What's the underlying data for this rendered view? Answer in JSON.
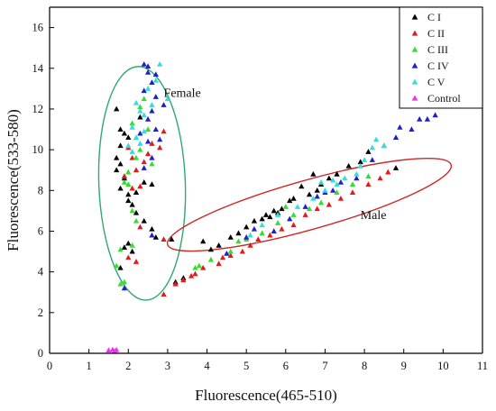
{
  "chart_data": {
    "type": "scatter",
    "xlabel": "Fluorescence(465-510)",
    "ylabel": "Fluorescence(533-580)",
    "xlim": [
      0,
      11
    ],
    "ylim": [
      0,
      17
    ],
    "xticks": [
      0,
      1,
      2,
      3,
      4,
      5,
      6,
      7,
      8,
      9,
      10,
      11
    ],
    "yticks": [
      0,
      2,
      4,
      6,
      8,
      10,
      12,
      14,
      16
    ],
    "grid": false,
    "legend_position": "top-right",
    "marker": "triangle",
    "series": [
      {
        "name": "C I",
        "color": "#000000",
        "points": [
          [
            1.7,
            12.0
          ],
          [
            1.8,
            11.0
          ],
          [
            1.9,
            10.8
          ],
          [
            1.8,
            10.2
          ],
          [
            1.7,
            9.6
          ],
          [
            1.8,
            9.3
          ],
          [
            1.7,
            9.0
          ],
          [
            1.9,
            8.6
          ],
          [
            1.8,
            8.1
          ],
          [
            2.0,
            7.8
          ],
          [
            2.0,
            7.5
          ],
          [
            2.1,
            7.3
          ],
          [
            2.2,
            6.9
          ],
          [
            2.4,
            6.5
          ],
          [
            2.6,
            6.1
          ],
          [
            2.7,
            5.7
          ],
          [
            2.0,
            5.4
          ],
          [
            1.9,
            5.2
          ],
          [
            2.1,
            5.0
          ],
          [
            2.4,
            8.4
          ],
          [
            2.6,
            8.3
          ],
          [
            2.2,
            7.9
          ],
          [
            2.0,
            10.6
          ],
          [
            2.3,
            11.6
          ],
          [
            3.1,
            5.6
          ],
          [
            1.8,
            4.2
          ],
          [
            3.9,
            5.5
          ],
          [
            4.1,
            5.1
          ],
          [
            4.3,
            5.3
          ],
          [
            4.6,
            5.7
          ],
          [
            4.8,
            5.9
          ],
          [
            5.0,
            6.2
          ],
          [
            5.2,
            6.5
          ],
          [
            5.4,
            6.6
          ],
          [
            5.5,
            6.8
          ],
          [
            5.7,
            7.0
          ],
          [
            5.8,
            6.9
          ],
          [
            5.9,
            7.1
          ],
          [
            6.1,
            7.5
          ],
          [
            6.2,
            7.6
          ],
          [
            6.4,
            8.2
          ],
          [
            6.6,
            7.8
          ],
          [
            6.8,
            8.0
          ],
          [
            6.9,
            8.3
          ],
          [
            7.1,
            8.6
          ],
          [
            7.3,
            8.8
          ],
          [
            7.6,
            9.2
          ],
          [
            7.9,
            9.4
          ],
          [
            8.1,
            9.9
          ],
          [
            8.8,
            9.1
          ],
          [
            3.4,
            3.7
          ],
          [
            3.2,
            3.5
          ],
          [
            6.7,
            8.8
          ],
          [
            5.6,
            6.7
          ]
        ]
      },
      {
        "name": "C II",
        "color": "#e41a1c",
        "points": [
          [
            2.9,
            5.6
          ],
          [
            2.9,
            2.9
          ],
          [
            3.2,
            3.4
          ],
          [
            3.4,
            3.6
          ],
          [
            3.7,
            3.9
          ],
          [
            3.9,
            4.2
          ],
          [
            4.3,
            4.4
          ],
          [
            4.6,
            4.8
          ],
          [
            4.9,
            5.0
          ],
          [
            5.1,
            5.3
          ],
          [
            5.3,
            5.6
          ],
          [
            5.6,
            5.8
          ],
          [
            5.9,
            6.1
          ],
          [
            6.2,
            6.3
          ],
          [
            6.5,
            6.8
          ],
          [
            6.8,
            7.1
          ],
          [
            7.1,
            7.3
          ],
          [
            7.4,
            7.6
          ],
          [
            7.7,
            7.9
          ],
          [
            8.1,
            8.3
          ],
          [
            8.4,
            8.6
          ],
          [
            8.6,
            8.9
          ],
          [
            2.2,
            4.5
          ],
          [
            2.0,
            4.7
          ],
          [
            2.3,
            6.2
          ],
          [
            2.1,
            8.1
          ],
          [
            2.3,
            8.2
          ],
          [
            1.9,
            8.7
          ],
          [
            2.4,
            9.4
          ],
          [
            2.5,
            9.8
          ],
          [
            2.6,
            10.3
          ],
          [
            2.8,
            10.1
          ],
          [
            2.9,
            10.9
          ],
          [
            2.2,
            9.0
          ],
          [
            2.1,
            9.6
          ],
          [
            2.0,
            10.1
          ],
          [
            3.6,
            3.8
          ],
          [
            4.4,
            4.7
          ]
        ]
      },
      {
        "name": "C III",
        "color": "#33dd33",
        "points": [
          [
            1.8,
            3.4
          ],
          [
            1.9,
            3.5
          ],
          [
            1.7,
            4.3
          ],
          [
            1.8,
            5.1
          ],
          [
            2.1,
            5.3
          ],
          [
            2.2,
            6.5
          ],
          [
            2.1,
            7.0
          ],
          [
            2.0,
            8.3
          ],
          [
            2.0,
            8.9
          ],
          [
            2.2,
            9.6
          ],
          [
            2.3,
            10.0
          ],
          [
            2.1,
            11.3
          ],
          [
            2.5,
            11.0
          ],
          [
            2.3,
            12.1
          ],
          [
            2.4,
            12.5
          ],
          [
            3.8,
            4.3
          ],
          [
            4.1,
            4.6
          ],
          [
            4.6,
            5.0
          ],
          [
            5.0,
            5.6
          ],
          [
            5.4,
            5.9
          ],
          [
            5.8,
            6.4
          ],
          [
            6.2,
            6.8
          ],
          [
            6.6,
            7.1
          ],
          [
            6.9,
            7.4
          ],
          [
            7.3,
            7.9
          ],
          [
            7.7,
            8.3
          ],
          [
            8.1,
            8.7
          ],
          [
            2.6,
            9.3
          ],
          [
            1.9,
            8.4
          ],
          [
            3.7,
            4.2
          ],
          [
            6.0,
            7.2
          ],
          [
            4.8,
            5.5
          ]
        ]
      },
      {
        "name": "C IV",
        "color": "#1f1fcc",
        "points": [
          [
            2.4,
            14.2
          ],
          [
            2.5,
            13.8
          ],
          [
            2.6,
            13.3
          ],
          [
            2.4,
            12.9
          ],
          [
            2.7,
            12.6
          ],
          [
            2.5,
            11.5
          ],
          [
            2.6,
            11.9
          ],
          [
            2.7,
            11.0
          ],
          [
            2.5,
            10.4
          ],
          [
            2.8,
            10.5
          ],
          [
            2.6,
            9.6
          ],
          [
            2.4,
            9.1
          ],
          [
            2.9,
            12.2
          ],
          [
            2.3,
            10.8
          ],
          [
            1.9,
            3.2
          ],
          [
            2.6,
            5.8
          ],
          [
            2.5,
            14.1
          ],
          [
            2.7,
            13.7
          ],
          [
            4.5,
            4.9
          ],
          [
            5.0,
            5.7
          ],
          [
            5.2,
            6.1
          ],
          [
            5.7,
            6.0
          ],
          [
            6.1,
            6.6
          ],
          [
            6.5,
            7.2
          ],
          [
            7.0,
            7.9
          ],
          [
            7.4,
            8.4
          ],
          [
            7.8,
            8.6
          ],
          [
            8.2,
            9.5
          ],
          [
            8.5,
            10.2
          ],
          [
            8.8,
            10.6
          ],
          [
            9.2,
            11.0
          ],
          [
            9.6,
            11.5
          ],
          [
            9.8,
            11.7
          ],
          [
            9.4,
            11.5
          ],
          [
            8.9,
            11.1
          ],
          [
            6.8,
            7.7
          ],
          [
            7.2,
            8.0
          ]
        ]
      },
      {
        "name": "C V",
        "color": "#33dddd",
        "points": [
          [
            2.8,
            14.2
          ],
          [
            2.5,
            13.0
          ],
          [
            2.2,
            12.3
          ],
          [
            2.3,
            11.9
          ],
          [
            2.4,
            11.7
          ],
          [
            2.1,
            11.1
          ],
          [
            2.2,
            10.6
          ],
          [
            2.0,
            10.2
          ],
          [
            2.1,
            9.9
          ],
          [
            2.3,
            10.3
          ],
          [
            3.0,
            12.5
          ],
          [
            2.7,
            13.4
          ],
          [
            5.4,
            6.3
          ],
          [
            5.8,
            6.8
          ],
          [
            6.3,
            7.2
          ],
          [
            6.7,
            7.6
          ],
          [
            7.0,
            8.0
          ],
          [
            7.3,
            8.3
          ],
          [
            7.5,
            8.6
          ],
          [
            7.8,
            8.8
          ],
          [
            8.0,
            9.5
          ],
          [
            8.2,
            10.1
          ],
          [
            8.3,
            10.5
          ],
          [
            8.5,
            10.2
          ],
          [
            6.9,
            8.4
          ],
          [
            7.2,
            8.5
          ],
          [
            7.9,
            9.2
          ],
          [
            5.1,
            5.8
          ],
          [
            2.4,
            10.9
          ],
          [
            2.6,
            12.2
          ]
        ]
      },
      {
        "name": "Control",
        "color": "#ee33ee",
        "points": [
          [
            1.5,
            0.15
          ],
          [
            1.6,
            0.18
          ],
          [
            1.7,
            0.17
          ],
          [
            1.65,
            0.12
          ]
        ]
      }
    ],
    "ellipses": [
      {
        "label": "Female",
        "color": "#2eaa6e",
        "cx": 2.35,
        "cy": 8.35,
        "rx": 1.1,
        "ry": 5.7,
        "tilt_deg": 4
      },
      {
        "label": "Male",
        "color": "#cc2a2a",
        "cx": 6.6,
        "cy": 7.3,
        "rx": 4.1,
        "ry": 0.95,
        "tilt_deg": 28.5
      }
    ]
  }
}
